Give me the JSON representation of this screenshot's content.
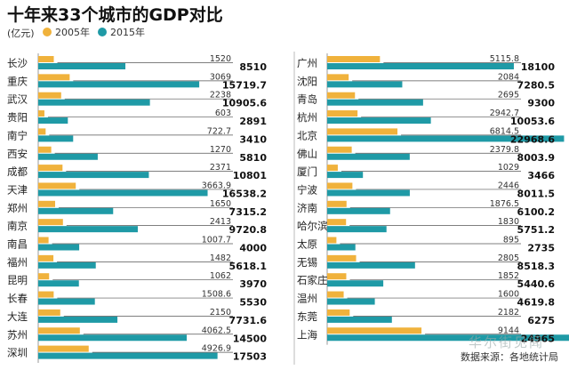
{
  "chart_data": {
    "type": "bar",
    "title": "十年来33个城市的GDP对比",
    "unit": "(亿元)",
    "source": "数据来源：各地统计局",
    "watermark": "华尔街见闻",
    "series": [
      {
        "name": "2005年",
        "color": "#f0b23c"
      },
      {
        "name": "2015年",
        "color": "#1f9aa6"
      }
    ],
    "xlim": [
      0,
      25000
    ],
    "panels": [
      {
        "cities": [
          {
            "city": "长沙",
            "v2005": 1520,
            "v2015": 8510,
            "l2005": "1520",
            "l2015": "8510"
          },
          {
            "city": "重庆",
            "v2005": 3069,
            "v2015": 15719.7,
            "l2005": "3069",
            "l2015": "15719.7"
          },
          {
            "city": "武汉",
            "v2005": 2238,
            "v2015": 10905.6,
            "l2005": "2238",
            "l2015": "10905.6"
          },
          {
            "city": "贵阳",
            "v2005": 603,
            "v2015": 2891,
            "l2005": "603",
            "l2015": "2891"
          },
          {
            "city": "南宁",
            "v2005": 722.7,
            "v2015": 3410,
            "l2005": "722.7",
            "l2015": "3410"
          },
          {
            "city": "西安",
            "v2005": 1270,
            "v2015": 5810,
            "l2005": "1270",
            "l2015": "5810"
          },
          {
            "city": "成都",
            "v2005": 2371,
            "v2015": 10801,
            "l2005": "2371",
            "l2015": "10801"
          },
          {
            "city": "天津",
            "v2005": 3663.9,
            "v2015": 16538.2,
            "l2005": "3663.9",
            "l2015": "16538.2"
          },
          {
            "city": "郑州",
            "v2005": 1650,
            "v2015": 7315.2,
            "l2005": "1650",
            "l2015": "7315.2"
          },
          {
            "city": "南京",
            "v2005": 2413,
            "v2015": 9720.8,
            "l2005": "2413",
            "l2015": "9720.8"
          },
          {
            "city": "南昌",
            "v2005": 1007.7,
            "v2015": 4000,
            "l2005": "1007.7",
            "l2015": "4000"
          },
          {
            "city": "福州",
            "v2005": 1482,
            "v2015": 5618.1,
            "l2005": "1482",
            "l2015": "5618.1"
          },
          {
            "city": "昆明",
            "v2005": 1062,
            "v2015": 3970,
            "l2005": "1062",
            "l2015": "3970"
          },
          {
            "city": "长春",
            "v2005": 1508.6,
            "v2015": 5530,
            "l2005": "1508.6",
            "l2015": "5530"
          },
          {
            "city": "大连",
            "v2005": 2150,
            "v2015": 7731.6,
            "l2005": "2150",
            "l2015": "7731.6"
          },
          {
            "city": "苏州",
            "v2005": 4062.5,
            "v2015": 14500,
            "l2005": "4062.5",
            "l2015": "14500"
          },
          {
            "city": "深圳",
            "v2005": 4926.9,
            "v2015": 17503,
            "l2005": "4926.9",
            "l2015": "17503"
          }
        ]
      },
      {
        "cities": [
          {
            "city": "广州",
            "v2005": 5115.8,
            "v2015": 18100,
            "l2005": "5115.8",
            "l2015": "18100"
          },
          {
            "city": "沈阳",
            "v2005": 2084,
            "v2015": 7280.5,
            "l2005": "2084",
            "l2015": "7280.5"
          },
          {
            "city": "青岛",
            "v2005": 2695,
            "v2015": 9300,
            "l2005": "2695",
            "l2015": "9300"
          },
          {
            "city": "杭州",
            "v2005": 2942.7,
            "v2015": 10053.6,
            "l2005": "2942.7",
            "l2015": "10053.6"
          },
          {
            "city": "北京",
            "v2005": 6814.5,
            "v2015": 22968.6,
            "l2005": "6814.5",
            "l2015": "22968.6"
          },
          {
            "city": "佛山",
            "v2005": 2379.8,
            "v2015": 8003.9,
            "l2005": "2379.8",
            "l2015": "8003.9"
          },
          {
            "city": "厦门",
            "v2005": 1029,
            "v2015": 3466,
            "l2005": "1029",
            "l2015": "3466"
          },
          {
            "city": "宁波",
            "v2005": 2446,
            "v2015": 8011.5,
            "l2005": "2446",
            "l2015": "8011.5"
          },
          {
            "city": "济南",
            "v2005": 1876.5,
            "v2015": 6100.2,
            "l2005": "1876.5",
            "l2015": "6100.2"
          },
          {
            "city": "哈尔滨",
            "v2005": 1830,
            "v2015": 5751.2,
            "l2005": "1830",
            "l2015": "5751.2"
          },
          {
            "city": "太原",
            "v2005": 895,
            "v2015": 2735,
            "l2005": "895",
            "l2015": "2735"
          },
          {
            "city": "无锡",
            "v2005": 2805,
            "v2015": 8518.3,
            "l2005": "2805",
            "l2015": "8518.3"
          },
          {
            "city": "石家庄",
            "v2005": 1852,
            "v2015": 5440.6,
            "l2005": "1852",
            "l2015": "5440.6"
          },
          {
            "city": "温州",
            "v2005": 1600,
            "v2015": 4619.8,
            "l2005": "1600",
            "l2015": "4619.8"
          },
          {
            "city": "东莞",
            "v2005": 2182,
            "v2015": 6275,
            "l2005": "2182",
            "l2015": "6275"
          },
          {
            "city": "上海",
            "v2005": 9144,
            "v2015": 24965,
            "l2005": "9144",
            "l2015": "24965"
          }
        ]
      }
    ]
  }
}
